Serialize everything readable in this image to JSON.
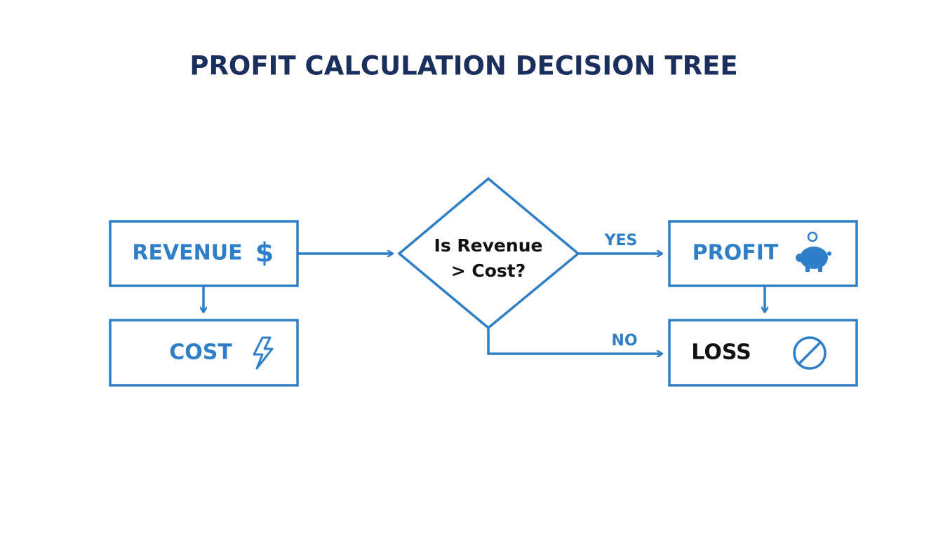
{
  "title": "PROFIT CALCULATION DECISION TREE",
  "nodes": [
    {
      "label": "REVENUE",
      "icon": "$"
    },
    {
      "label": "COST"
    },
    {
      "lines": [
        "Is Revenue",
        "> Cost?"
      ]
    },
    {
      "label": "PROFIT"
    },
    {
      "label": "LOSS"
    }
  ],
  "edges": [
    {
      "label": "YES"
    },
    {
      "label": "NO"
    }
  ]
}
